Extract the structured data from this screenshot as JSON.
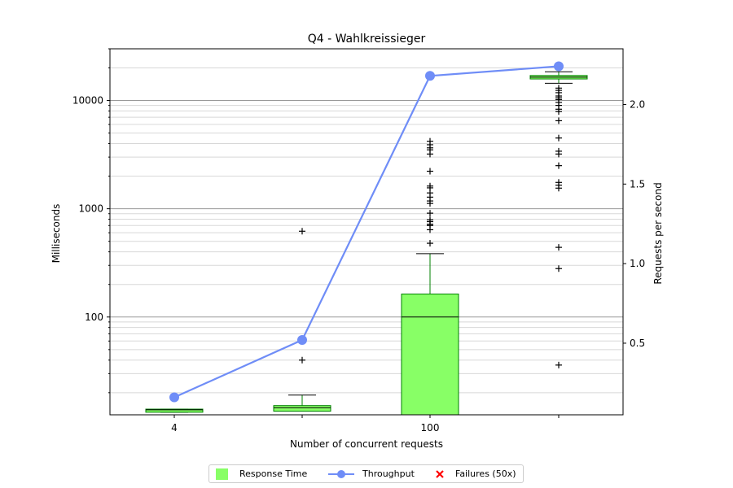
{
  "colors": {
    "box_fill": "#88ff66",
    "box_edge": "#008000",
    "throughput": "#6f8df7",
    "failures": "#ff0000",
    "grid_major": "#999999",
    "grid_minor": "#d8d8d8"
  },
  "chart_data": {
    "type": "box+line",
    "title": "Q4 - Wahlkreissieger",
    "xlabel": "Number of concurrent requests",
    "ylabel_left": "Milliseconds",
    "ylabel_right": "Requests per second",
    "left_axis": {
      "scale": "log",
      "ylim": [
        12.5,
        30000
      ],
      "ticks": [
        100,
        1000,
        10000
      ],
      "tick_labels": [
        "100",
        "1000",
        "10000"
      ]
    },
    "right_axis": {
      "scale": "linear",
      "ylim": [
        0.05,
        2.35
      ],
      "ticks": [
        0.5,
        1.0,
        1.5,
        2.0
      ],
      "tick_labels": [
        "0.5",
        "1.0",
        "1.5",
        "2.0"
      ]
    },
    "x_tick_labels": [
      "4",
      "",
      "100",
      ""
    ],
    "grid": true,
    "legend_position": "bottom-center",
    "response_time": {
      "name": "Response Time",
      "boxes": [
        {
          "q1": 13.2,
          "median": 13.9,
          "q3": 14.1,
          "whisker_low": 13.2,
          "whisker_high": 14.1,
          "outliers": []
        },
        {
          "q1": 13.5,
          "median": 14.5,
          "q3": 15.2,
          "whisker_low": 13.5,
          "whisker_high": 19,
          "outliers": [
            40,
            620
          ]
        },
        {
          "q1": 12.5,
          "median": 100,
          "q3": 163,
          "whisker_low": 12.5,
          "whisker_high": 385,
          "outliers": [
            480,
            640,
            700,
            720,
            760,
            790,
            910,
            1120,
            1180,
            1280,
            1400,
            1560,
            1620,
            2220,
            3200,
            3500,
            3650,
            3900,
            4200
          ]
        },
        {
          "q1": 15800,
          "median": 16400,
          "q3": 17000,
          "whisker_low": 14400,
          "whisker_high": 18400,
          "outliers": [
            36,
            280,
            440,
            1550,
            1650,
            1750,
            2500,
            3200,
            3400,
            4500,
            6500,
            7900,
            8300,
            9000,
            9600,
            10200,
            10600,
            11000,
            11800,
            12400,
            13000
          ]
        }
      ]
    },
    "throughput": {
      "name": "Throughput",
      "values": [
        0.16,
        0.52,
        2.18,
        2.24
      ]
    },
    "failures": {
      "name": "Failures (50x)",
      "values": []
    }
  }
}
